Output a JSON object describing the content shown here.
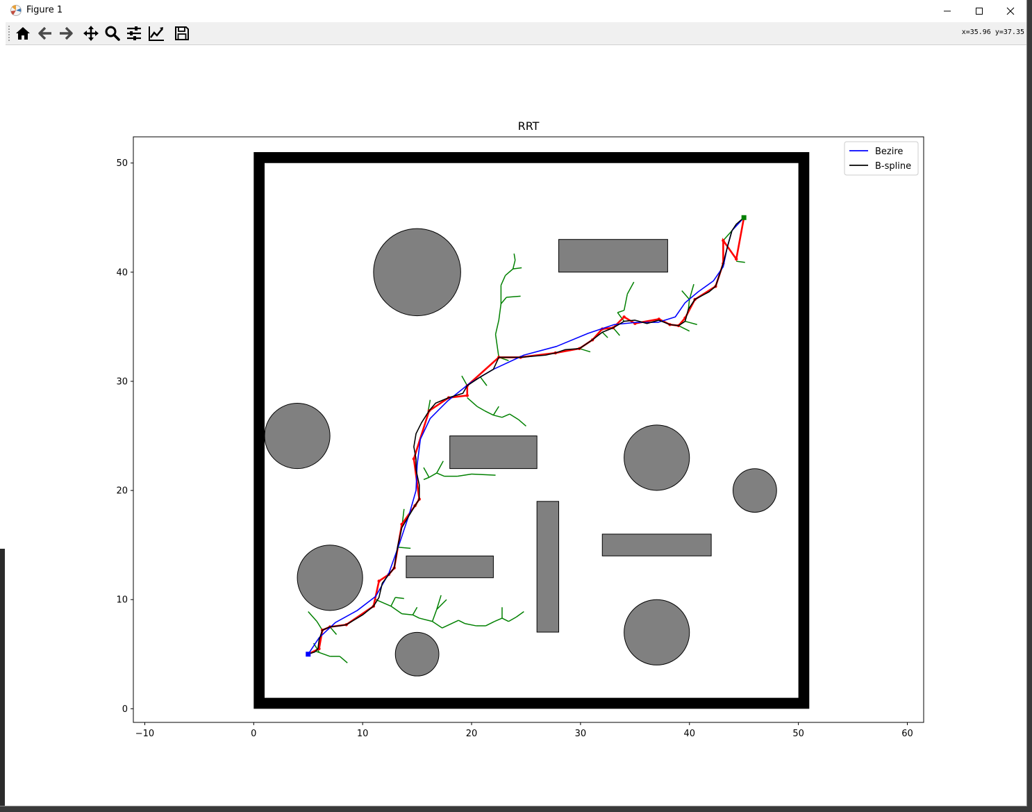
{
  "window": {
    "title": "Figure 1",
    "controls": [
      "minimize-icon",
      "maximize-icon",
      "close-icon"
    ]
  },
  "toolbar": {
    "tools": [
      {
        "name": "home-tool",
        "icon": "home-icon",
        "label": "Home"
      },
      {
        "name": "back-tool",
        "icon": "arrow-left-icon",
        "label": "Back"
      },
      {
        "name": "forward-tool",
        "icon": "arrow-right-icon",
        "label": "Forward"
      },
      {
        "name": "pan-tool",
        "icon": "move-icon",
        "label": "Pan"
      },
      {
        "name": "zoom-tool",
        "icon": "magnifier-icon",
        "label": "Zoom"
      },
      {
        "name": "subplots-tool",
        "icon": "sliders-icon",
        "label": "Subplots"
      },
      {
        "name": "customize-tool",
        "icon": "line-chart-icon",
        "label": "Customize"
      },
      {
        "name": "save-tool",
        "icon": "floppy-icon",
        "label": "Save"
      }
    ],
    "coordinates": "x=35.96 y=37.35"
  },
  "colors": {
    "bezier": "#0000ff",
    "bspline": "#000000",
    "tree": "#008000",
    "path_nodes": "#ff0000",
    "obstacle_fill": "#808080",
    "wall": "#000000",
    "start": "#0000ff",
    "goal": "#008000"
  },
  "chart_data": {
    "type": "line",
    "title": "RRT",
    "xlabel": "",
    "ylabel": "",
    "xlim": [
      -11.05,
      61.5
    ],
    "ylim": [
      -1.25,
      52.4
    ],
    "xticks": [
      -10,
      0,
      10,
      20,
      30,
      40,
      50,
      60
    ],
    "yticks": [
      0,
      10,
      20,
      30,
      40,
      50
    ],
    "grid": false,
    "legend": {
      "location": "upper right",
      "entries": [
        "Bezire",
        "B-spline"
      ]
    },
    "boundary": {
      "outer": [
        0,
        0,
        51,
        51
      ],
      "inner": [
        1,
        1,
        50,
        50
      ]
    },
    "obstacles": {
      "circles": [
        {
          "center": [
            15,
            40
          ],
          "radius": 4
        },
        {
          "center": [
            4,
            25
          ],
          "radius": 3
        },
        {
          "center": [
            37,
            23
          ],
          "radius": 3
        },
        {
          "center": [
            46,
            20
          ],
          "radius": 2
        },
        {
          "center": [
            7,
            12
          ],
          "radius": 3
        },
        {
          "center": [
            37,
            7
          ],
          "radius": 3
        },
        {
          "center": [
            15,
            5
          ],
          "radius": 2
        }
      ],
      "rectangles": [
        {
          "x": 28,
          "y": 40,
          "width": 10,
          "height": 3
        },
        {
          "x": 18,
          "y": 22,
          "width": 8,
          "height": 3
        },
        {
          "x": 26,
          "y": 7,
          "width": 2,
          "height": 12
        },
        {
          "x": 32,
          "y": 14,
          "width": 10,
          "height": 2
        },
        {
          "x": 14,
          "y": 12,
          "width": 8,
          "height": 2
        }
      ]
    },
    "start": [
      5,
      5
    ],
    "goal": [
      45,
      45
    ],
    "series": [
      {
        "name": "Bezire",
        "x": [
          5,
          6,
          7.5,
          9.5,
          11.2,
          12.4,
          13.4,
          14.3,
          14.9,
          15,
          15.3,
          16.2,
          17.8,
          19.8,
          22,
          24.8,
          27.8,
          30.7,
          33.1,
          35.1,
          37.1,
          38.7,
          39.6,
          40.8,
          42.2,
          43.1,
          43.5,
          43.9,
          45
        ],
        "y": [
          5,
          6.5,
          7.9,
          9,
          10.3,
          12.4,
          15.2,
          17.9,
          20,
          22.3,
          24.7,
          26.6,
          28.2,
          29.8,
          31.1,
          32.4,
          33.2,
          34.4,
          35.2,
          35.4,
          35.4,
          35.9,
          37.2,
          38.2,
          39.2,
          40.5,
          42.4,
          43.8,
          45
        ]
      },
      {
        "name": "B-spline",
        "x": [
          5,
          5.6,
          5.9,
          6.0,
          6.3,
          7.0,
          7.9,
          8.5,
          10.0,
          11.0,
          11.5,
          11.8,
          12.4,
          12.9,
          13.2,
          13.6,
          14.2,
          14.8,
          15.2,
          15.2,
          14.9,
          14.9,
          14.7,
          14.9,
          15.4,
          16.1,
          16.7,
          17.9,
          19.2,
          19.6,
          20.8,
          22.0,
          22.5,
          24.5,
          26.8,
          27.7,
          28.6,
          29.9,
          31.1,
          32.0,
          33.0,
          34.0,
          35.0,
          36.1,
          37.2,
          38.2,
          39.0,
          39.6,
          39.9,
          40.5,
          41.8,
          42.4,
          42.8,
          43.1,
          43.4,
          43.9,
          44.3,
          45
        ],
        "y": [
          5,
          5.2,
          5.5,
          6.3,
          7.2,
          7.5,
          7.6,
          7.7,
          8.6,
          9.4,
          10.2,
          11.5,
          12.3,
          12.9,
          14.8,
          16.6,
          17.6,
          18.6,
          19.2,
          20.5,
          21.9,
          22.9,
          24.0,
          25.2,
          26.2,
          27.3,
          28.0,
          28.5,
          28.9,
          29.6,
          30.4,
          31.1,
          32.2,
          32.2,
          32.4,
          32.6,
          32.9,
          33.0,
          33.8,
          34.5,
          34.9,
          35.5,
          35.6,
          35.3,
          35.6,
          35.2,
          35.1,
          35.5,
          36.6,
          37.5,
          38.2,
          38.7,
          39.9,
          40.8,
          42.0,
          43.8,
          44.4,
          45
        ]
      }
    ],
    "tree_edges": [
      [
        [
          6,
          5.2
        ],
        [
          5.5,
          6
        ]
      ],
      [
        [
          5.6,
          5.3
        ],
        [
          7.0,
          4.8
        ]
      ],
      [
        [
          7.0,
          4.8
        ],
        [
          7.9,
          4.8
        ]
      ],
      [
        [
          7.9,
          4.8
        ],
        [
          8.6,
          4.2
        ]
      ],
      [
        [
          6.3,
          7.2
        ],
        [
          5.8,
          8.0
        ]
      ],
      [
        [
          5.8,
          8.0
        ],
        [
          5.0,
          8.9
        ]
      ],
      [
        [
          7.0,
          7.5
        ],
        [
          7.6,
          6.8
        ]
      ],
      [
        [
          11.2,
          10.0
        ],
        [
          12.6,
          9.4
        ]
      ],
      [
        [
          12.6,
          9.4
        ],
        [
          13.6,
          8.7
        ]
      ],
      [
        [
          13.6,
          8.7
        ],
        [
          14.6,
          8.6
        ]
      ],
      [
        [
          14.6,
          8.6
        ],
        [
          15.2,
          8.3
        ]
      ],
      [
        [
          15.2,
          8.3
        ],
        [
          16.4,
          8.0
        ]
      ],
      [
        [
          16.4,
          8.0
        ],
        [
          17.3,
          7.4
        ]
      ],
      [
        [
          17.3,
          7.4
        ],
        [
          18.8,
          8.1
        ]
      ],
      [
        [
          18.8,
          8.1
        ],
        [
          19.4,
          7.8
        ]
      ],
      [
        [
          19.4,
          7.8
        ],
        [
          20.4,
          7.6
        ]
      ],
      [
        [
          20.4,
          7.6
        ],
        [
          21.3,
          7.6
        ]
      ],
      [
        [
          21.3,
          7.6
        ],
        [
          22.1,
          8.0
        ]
      ],
      [
        [
          22.1,
          8.0
        ],
        [
          22.8,
          8.3
        ]
      ],
      [
        [
          22.8,
          8.3
        ],
        [
          23.4,
          8.0
        ]
      ],
      [
        [
          23.4,
          8.0
        ],
        [
          24.1,
          8.4
        ]
      ],
      [
        [
          24.1,
          8.4
        ],
        [
          24.8,
          8.9
        ]
      ],
      [
        [
          22.8,
          8.3
        ],
        [
          22.8,
          9.3
        ]
      ],
      [
        [
          12.6,
          9.4
        ],
        [
          13.0,
          10.2
        ]
      ],
      [
        [
          13.0,
          10.2
        ],
        [
          13.8,
          10.1
        ]
      ],
      [
        [
          14.6,
          8.6
        ],
        [
          15.0,
          9.3
        ]
      ],
      [
        [
          16.4,
          8.0
        ],
        [
          16.8,
          9.1
        ]
      ],
      [
        [
          16.8,
          9.1
        ],
        [
          17.2,
          10.4
        ]
      ],
      [
        [
          16.8,
          9.1
        ],
        [
          17.7,
          10.0
        ]
      ],
      [
        [
          13.2,
          14.8
        ],
        [
          14.4,
          14.7
        ]
      ],
      [
        [
          13.6,
          16.6
        ],
        [
          13.8,
          18.3
        ]
      ],
      [
        [
          14.9,
          18.6
        ],
        [
          15.2,
          19.4
        ]
      ],
      [
        [
          15.6,
          21.0
        ],
        [
          16.1,
          21.2
        ]
      ],
      [
        [
          16.1,
          21.2
        ],
        [
          16.8,
          21.6
        ]
      ],
      [
        [
          16.8,
          21.6
        ],
        [
          17.5,
          21.3
        ]
      ],
      [
        [
          17.5,
          21.3
        ],
        [
          18.7,
          21.3
        ]
      ],
      [
        [
          18.7,
          21.3
        ],
        [
          20.0,
          21.5
        ]
      ],
      [
        [
          20.0,
          21.5
        ],
        [
          22.2,
          21.4
        ]
      ],
      [
        [
          16.1,
          21.2
        ],
        [
          15.6,
          22.1
        ]
      ],
      [
        [
          16.8,
          21.6
        ],
        [
          17.4,
          22.7
        ]
      ],
      [
        [
          16.0,
          27.2
        ],
        [
          16.2,
          28.3
        ]
      ],
      [
        [
          19.6,
          28.5
        ],
        [
          20.5,
          27.7
        ]
      ],
      [
        [
          20.5,
          27.7
        ],
        [
          21.2,
          27.3
        ]
      ],
      [
        [
          21.2,
          27.3
        ],
        [
          22.0,
          26.9
        ]
      ],
      [
        [
          22.0,
          26.9
        ],
        [
          22.8,
          26.7
        ]
      ],
      [
        [
          22.8,
          26.7
        ],
        [
          23.5,
          27.0
        ]
      ],
      [
        [
          23.5,
          27.0
        ],
        [
          24.3,
          26.5
        ]
      ],
      [
        [
          24.3,
          26.5
        ],
        [
          25.0,
          25.9
        ]
      ],
      [
        [
          22.0,
          26.9
        ],
        [
          22.5,
          27.7
        ]
      ],
      [
        [
          19.6,
          29.6
        ],
        [
          19.1,
          30.5
        ]
      ],
      [
        [
          20.8,
          30.4
        ],
        [
          21.4,
          29.6
        ]
      ],
      [
        [
          22.5,
          32.2
        ],
        [
          22.2,
          34.3
        ]
      ],
      [
        [
          22.2,
          34.3
        ],
        [
          22.5,
          35.6
        ]
      ],
      [
        [
          22.5,
          35.6
        ],
        [
          22.7,
          37.1
        ]
      ],
      [
        [
          22.7,
          37.1
        ],
        [
          23.2,
          37.7
        ]
      ],
      [
        [
          23.2,
          37.7
        ],
        [
          24.5,
          37.8
        ]
      ],
      [
        [
          22.7,
          37.1
        ],
        [
          22.7,
          38.8
        ]
      ],
      [
        [
          22.7,
          38.8
        ],
        [
          23.1,
          39.7
        ]
      ],
      [
        [
          23.1,
          39.7
        ],
        [
          23.8,
          40.3
        ]
      ],
      [
        [
          23.8,
          40.3
        ],
        [
          24.6,
          40.4
        ]
      ],
      [
        [
          23.8,
          40.3
        ],
        [
          24.0,
          41.1
        ]
      ],
      [
        [
          24.0,
          41.1
        ],
        [
          23.9,
          41.7
        ]
      ],
      [
        [
          22.5,
          32.2
        ],
        [
          23.4,
          31.9
        ]
      ],
      [
        [
          29.9,
          33.0
        ],
        [
          30.9,
          32.7
        ]
      ],
      [
        [
          32.0,
          34.5
        ],
        [
          32.5,
          34.0
        ]
      ],
      [
        [
          33.0,
          34.9
        ],
        [
          33.6,
          34.2
        ]
      ],
      [
        [
          34.0,
          35.5
        ],
        [
          33.4,
          36.3
        ]
      ],
      [
        [
          33.4,
          36.3
        ],
        [
          34.0,
          36.5
        ]
      ],
      [
        [
          34.0,
          36.5
        ],
        [
          34.3,
          38.0
        ]
      ],
      [
        [
          34.3,
          38.0
        ],
        [
          34.9,
          39.1
        ]
      ],
      [
        [
          39.0,
          35.1
        ],
        [
          40.0,
          34.6
        ]
      ],
      [
        [
          39.6,
          35.5
        ],
        [
          40.7,
          35.2
        ]
      ],
      [
        [
          39.9,
          36.6
        ],
        [
          40.0,
          37.5
        ]
      ],
      [
        [
          40.0,
          37.5
        ],
        [
          39.3,
          38.3
        ]
      ],
      [
        [
          40.0,
          37.5
        ],
        [
          40.4,
          38.9
        ]
      ],
      [
        [
          44.3,
          41.0
        ],
        [
          45.1,
          40.9
        ]
      ],
      [
        [
          43.9,
          43.8
        ],
        [
          43.1,
          42.9
        ]
      ]
    ],
    "path_nodes": [
      [
        6.0,
        5.5
      ],
      [
        6.3,
        7.2
      ],
      [
        7.0,
        7.5
      ],
      [
        8.5,
        7.7
      ],
      [
        11.0,
        9.4
      ],
      [
        11.5,
        11.7
      ],
      [
        12.4,
        12.3
      ],
      [
        12.9,
        12.9
      ],
      [
        13.6,
        16.9
      ],
      [
        14.8,
        18.6
      ],
      [
        15.2,
        19.2
      ],
      [
        14.7,
        22.9
      ],
      [
        16.1,
        27.3
      ],
      [
        17.9,
        28.5
      ],
      [
        19.6,
        28.7
      ],
      [
        19.6,
        29.6
      ],
      [
        22.5,
        32.2
      ],
      [
        24.5,
        32.2
      ],
      [
        27.7,
        32.6
      ],
      [
        29.9,
        33.0
      ],
      [
        31.1,
        33.8
      ],
      [
        32.0,
        34.8
      ],
      [
        33.0,
        34.9
      ],
      [
        34.0,
        35.9
      ],
      [
        35.0,
        35.3
      ],
      [
        37.2,
        35.7
      ],
      [
        38.2,
        35.2
      ],
      [
        39.0,
        35.1
      ],
      [
        39.6,
        35.8
      ],
      [
        40.5,
        37.5
      ],
      [
        42.4,
        38.7
      ],
      [
        43.1,
        40.8
      ],
      [
        43.1,
        42.9
      ],
      [
        44.3,
        41.2
      ],
      [
        45,
        45
      ]
    ]
  }
}
